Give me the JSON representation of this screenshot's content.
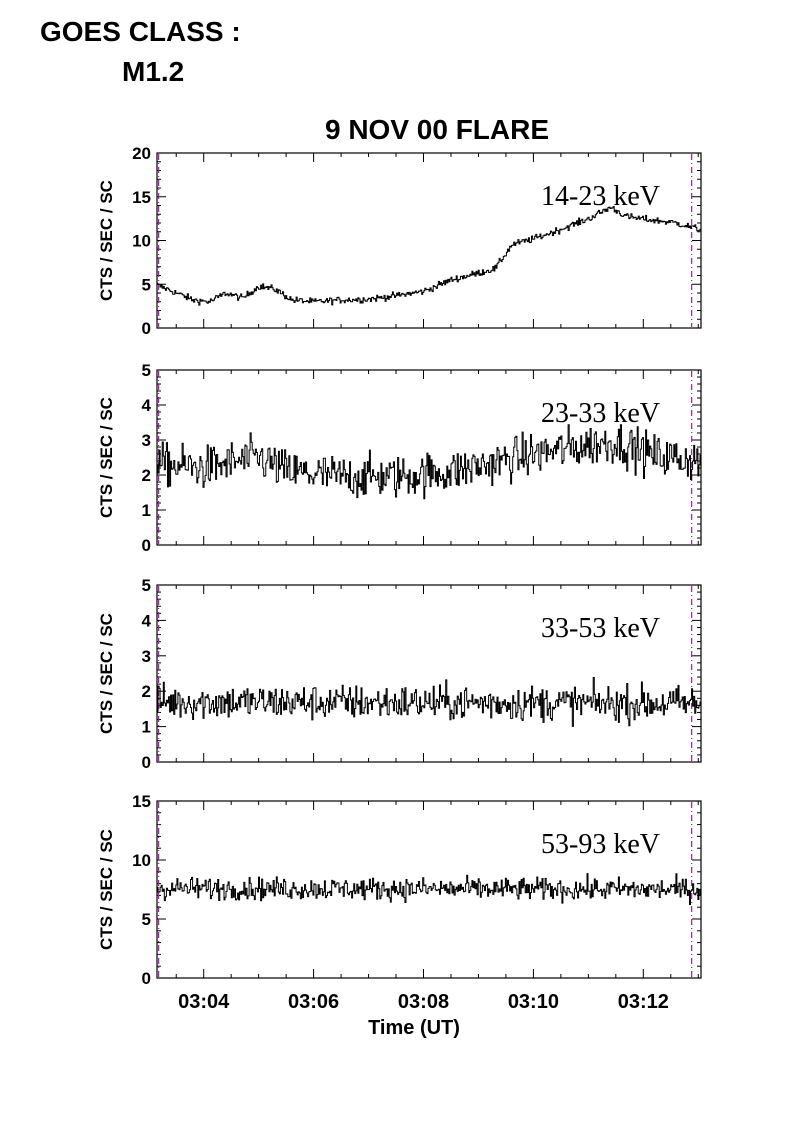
{
  "header": {
    "goes_label": "GOES CLASS :",
    "goes_class": "M1.2"
  },
  "chart_data": {
    "type": "line",
    "title": "9 NOV 00 FLARE",
    "xlabel": "Time (UT)",
    "x_ticks": [
      "03:04",
      "03:06",
      "03:08",
      "03:10",
      "03:12"
    ],
    "x_range_minutes": [
      3.15,
      13.05
    ],
    "markers_minutes": [
      3.18,
      12.88
    ],
    "marker_color": "#a020a0",
    "line_color": "#000000",
    "panels": [
      {
        "band": "14-23 keV",
        "ylabel": "CTS / SEC / SC",
        "ylim": [
          0,
          20
        ],
        "yticks": [
          "0",
          "5",
          "10",
          "15",
          "20"
        ],
        "ytick_values": [
          0,
          5,
          10,
          15,
          20
        ],
        "noise": 0.35,
        "profile": [
          [
            3.15,
            4.9
          ],
          [
            3.5,
            4.0
          ],
          [
            3.8,
            3.2
          ],
          [
            4.1,
            3.0
          ],
          [
            4.4,
            4.0
          ],
          [
            4.7,
            3.4
          ],
          [
            5.0,
            4.8
          ],
          [
            5.3,
            4.4
          ],
          [
            5.6,
            3.2
          ],
          [
            6.0,
            3.0
          ],
          [
            6.5,
            3.2
          ],
          [
            7.0,
            3.3
          ],
          [
            7.5,
            3.7
          ],
          [
            8.0,
            4.2
          ],
          [
            8.5,
            5.5
          ],
          [
            9.0,
            6.3
          ],
          [
            9.3,
            6.8
          ],
          [
            9.6,
            9.5
          ],
          [
            10.0,
            10.2
          ],
          [
            10.5,
            11.3
          ],
          [
            11.0,
            12.5
          ],
          [
            11.4,
            13.8
          ],
          [
            11.7,
            12.7
          ],
          [
            12.2,
            12.3
          ],
          [
            12.6,
            12.0
          ],
          [
            13.05,
            11.2
          ]
        ]
      },
      {
        "band": "23-33 keV",
        "ylabel": "CTS / SEC / SC",
        "ylim": [
          0,
          5
        ],
        "yticks": [
          "0",
          "1",
          "2",
          "3",
          "4",
          "5"
        ],
        "ytick_values": [
          0,
          1,
          2,
          3,
          4,
          5
        ],
        "noise": 0.55,
        "profile": [
          [
            3.15,
            2.3
          ],
          [
            4.0,
            2.2
          ],
          [
            5.0,
            2.5
          ],
          [
            5.5,
            2.1
          ],
          [
            6.5,
            1.95
          ],
          [
            7.5,
            1.95
          ],
          [
            8.5,
            2.1
          ],
          [
            9.3,
            2.35
          ],
          [
            10.0,
            2.6
          ],
          [
            11.0,
            2.85
          ],
          [
            11.5,
            2.95
          ],
          [
            12.2,
            2.55
          ],
          [
            13.05,
            2.4
          ]
        ]
      },
      {
        "band": "33-53 keV",
        "ylabel": "CTS / SEC / SC",
        "ylim": [
          0,
          5
        ],
        "yticks": [
          "0",
          "1",
          "2",
          "3",
          "4",
          "5"
        ],
        "ytick_values": [
          0,
          1,
          2,
          3,
          4,
          5
        ],
        "noise": 0.45,
        "profile": [
          [
            3.15,
            1.7
          ],
          [
            13.05,
            1.65
          ]
        ]
      },
      {
        "band": "53-93 keV",
        "ylabel": "CTS / SEC / SC",
        "ylim": [
          0,
          15
        ],
        "yticks": [
          "0",
          "5",
          "10",
          "15"
        ],
        "ytick_values": [
          0,
          5,
          10,
          15
        ],
        "noise": 0.85,
        "profile": [
          [
            3.15,
            7.6
          ],
          [
            13.05,
            7.5
          ]
        ]
      }
    ]
  }
}
